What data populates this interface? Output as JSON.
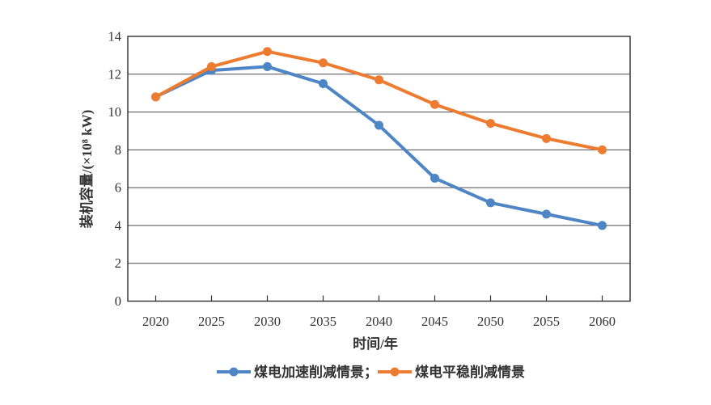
{
  "chart_data": {
    "type": "line",
    "title": "",
    "xlabel": "时间/年",
    "ylabel": "装机容量/(×10⁸ kW)",
    "categories": [
      "2020",
      "2025",
      "2030",
      "2035",
      "2040",
      "2045",
      "2050",
      "2055",
      "2060"
    ],
    "y_ticks": [
      "0",
      "2",
      "4",
      "6",
      "8",
      "10",
      "12",
      "14"
    ],
    "ylim": [
      0,
      14
    ],
    "grid": "horizontal",
    "legend_position": "bottom",
    "series": [
      {
        "name": "煤电加速削减情景",
        "legend_label": "煤电加速削减情景；",
        "color": "#4E86C5",
        "marker": "circle",
        "values": [
          10.8,
          12.2,
          12.4,
          11.5,
          9.3,
          6.5,
          5.2,
          4.6,
          4.0
        ]
      },
      {
        "name": "煤电平稳削减情景",
        "legend_label": "煤电平稳削减情景",
        "color": "#ED7C31",
        "marker": "circle",
        "values": [
          10.8,
          12.4,
          13.2,
          12.6,
          11.7,
          10.4,
          9.4,
          8.6,
          8.0
        ]
      }
    ],
    "axis_color": "#2e2e2e",
    "grid_color": "#4a4a4a",
    "text_color": "#333333",
    "background_color": "#ffffff"
  }
}
